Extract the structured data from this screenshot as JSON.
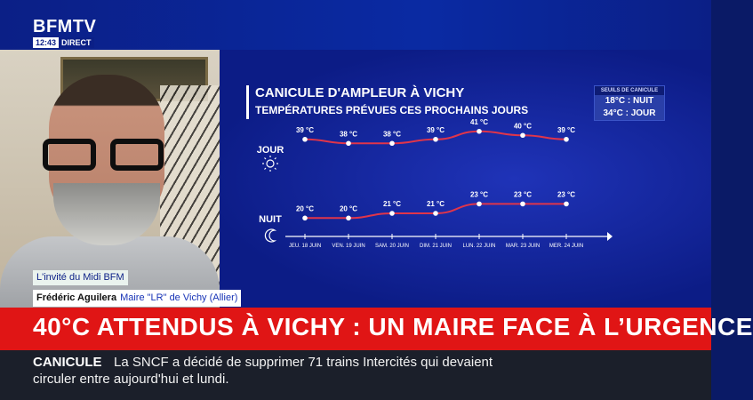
{
  "channel": {
    "logo": "BFMTV",
    "time": "12:43",
    "live": "DIRECT"
  },
  "infographic": {
    "title": "CANICULE D'AMPLEUR À VICHY",
    "subtitle": "TEMPÉRATURES PRÉVUES CES PROCHAINS JOURS",
    "thresholds": {
      "heading": "SEUILS DE CANICULE",
      "night": "18°C : NUIT",
      "day": "34°C : JOUR"
    },
    "day_label": "JOUR",
    "night_label": "NUIT"
  },
  "chart_data": {
    "type": "line",
    "x": [
      "JEU. 18 JUIN",
      "VEN. 19 JUIN",
      "SAM. 20 JUIN",
      "DIM. 21 JUIN",
      "LUN. 22 JUIN",
      "MAR. 23 JUIN",
      "MER. 24 JUIN"
    ],
    "series": [
      {
        "name": "JOUR",
        "values": [
          39,
          38,
          38,
          39,
          41,
          40,
          39
        ],
        "labels": [
          "39 °C",
          "38 °C",
          "38 °C",
          "39 °C",
          "41 °C",
          "40 °C",
          "39 °C"
        ]
      },
      {
        "name": "NUIT",
        "values": [
          20,
          20,
          21,
          21,
          23,
          23,
          23
        ],
        "labels": [
          "20 °C",
          "20 °C",
          "21 °C",
          "21 °C",
          "23 °C",
          "23 °C",
          "23 °C"
        ]
      }
    ],
    "unit": "°C",
    "colors": {
      "line": "#e0354a",
      "point": "#ffffff"
    }
  },
  "captions": {
    "guest_tag": "L'invité du Midi BFM",
    "name": "Frédéric Aguilera",
    "role": "Maire \"LR\" de Vichy (Allier)"
  },
  "headline": "40°C ATTENDUS À VICHY : UN MAIRE FACE À L’URGENCE",
  "ticker": {
    "label": "CANICULE",
    "line1": "La SNCF a décidé de supprimer 71 trains Intercités qui devaient",
    "line2": "circuler entre aujourd'hui et lundi."
  },
  "colors": {
    "brand_blue": "#0b1f86",
    "alert_red": "#e01515"
  }
}
